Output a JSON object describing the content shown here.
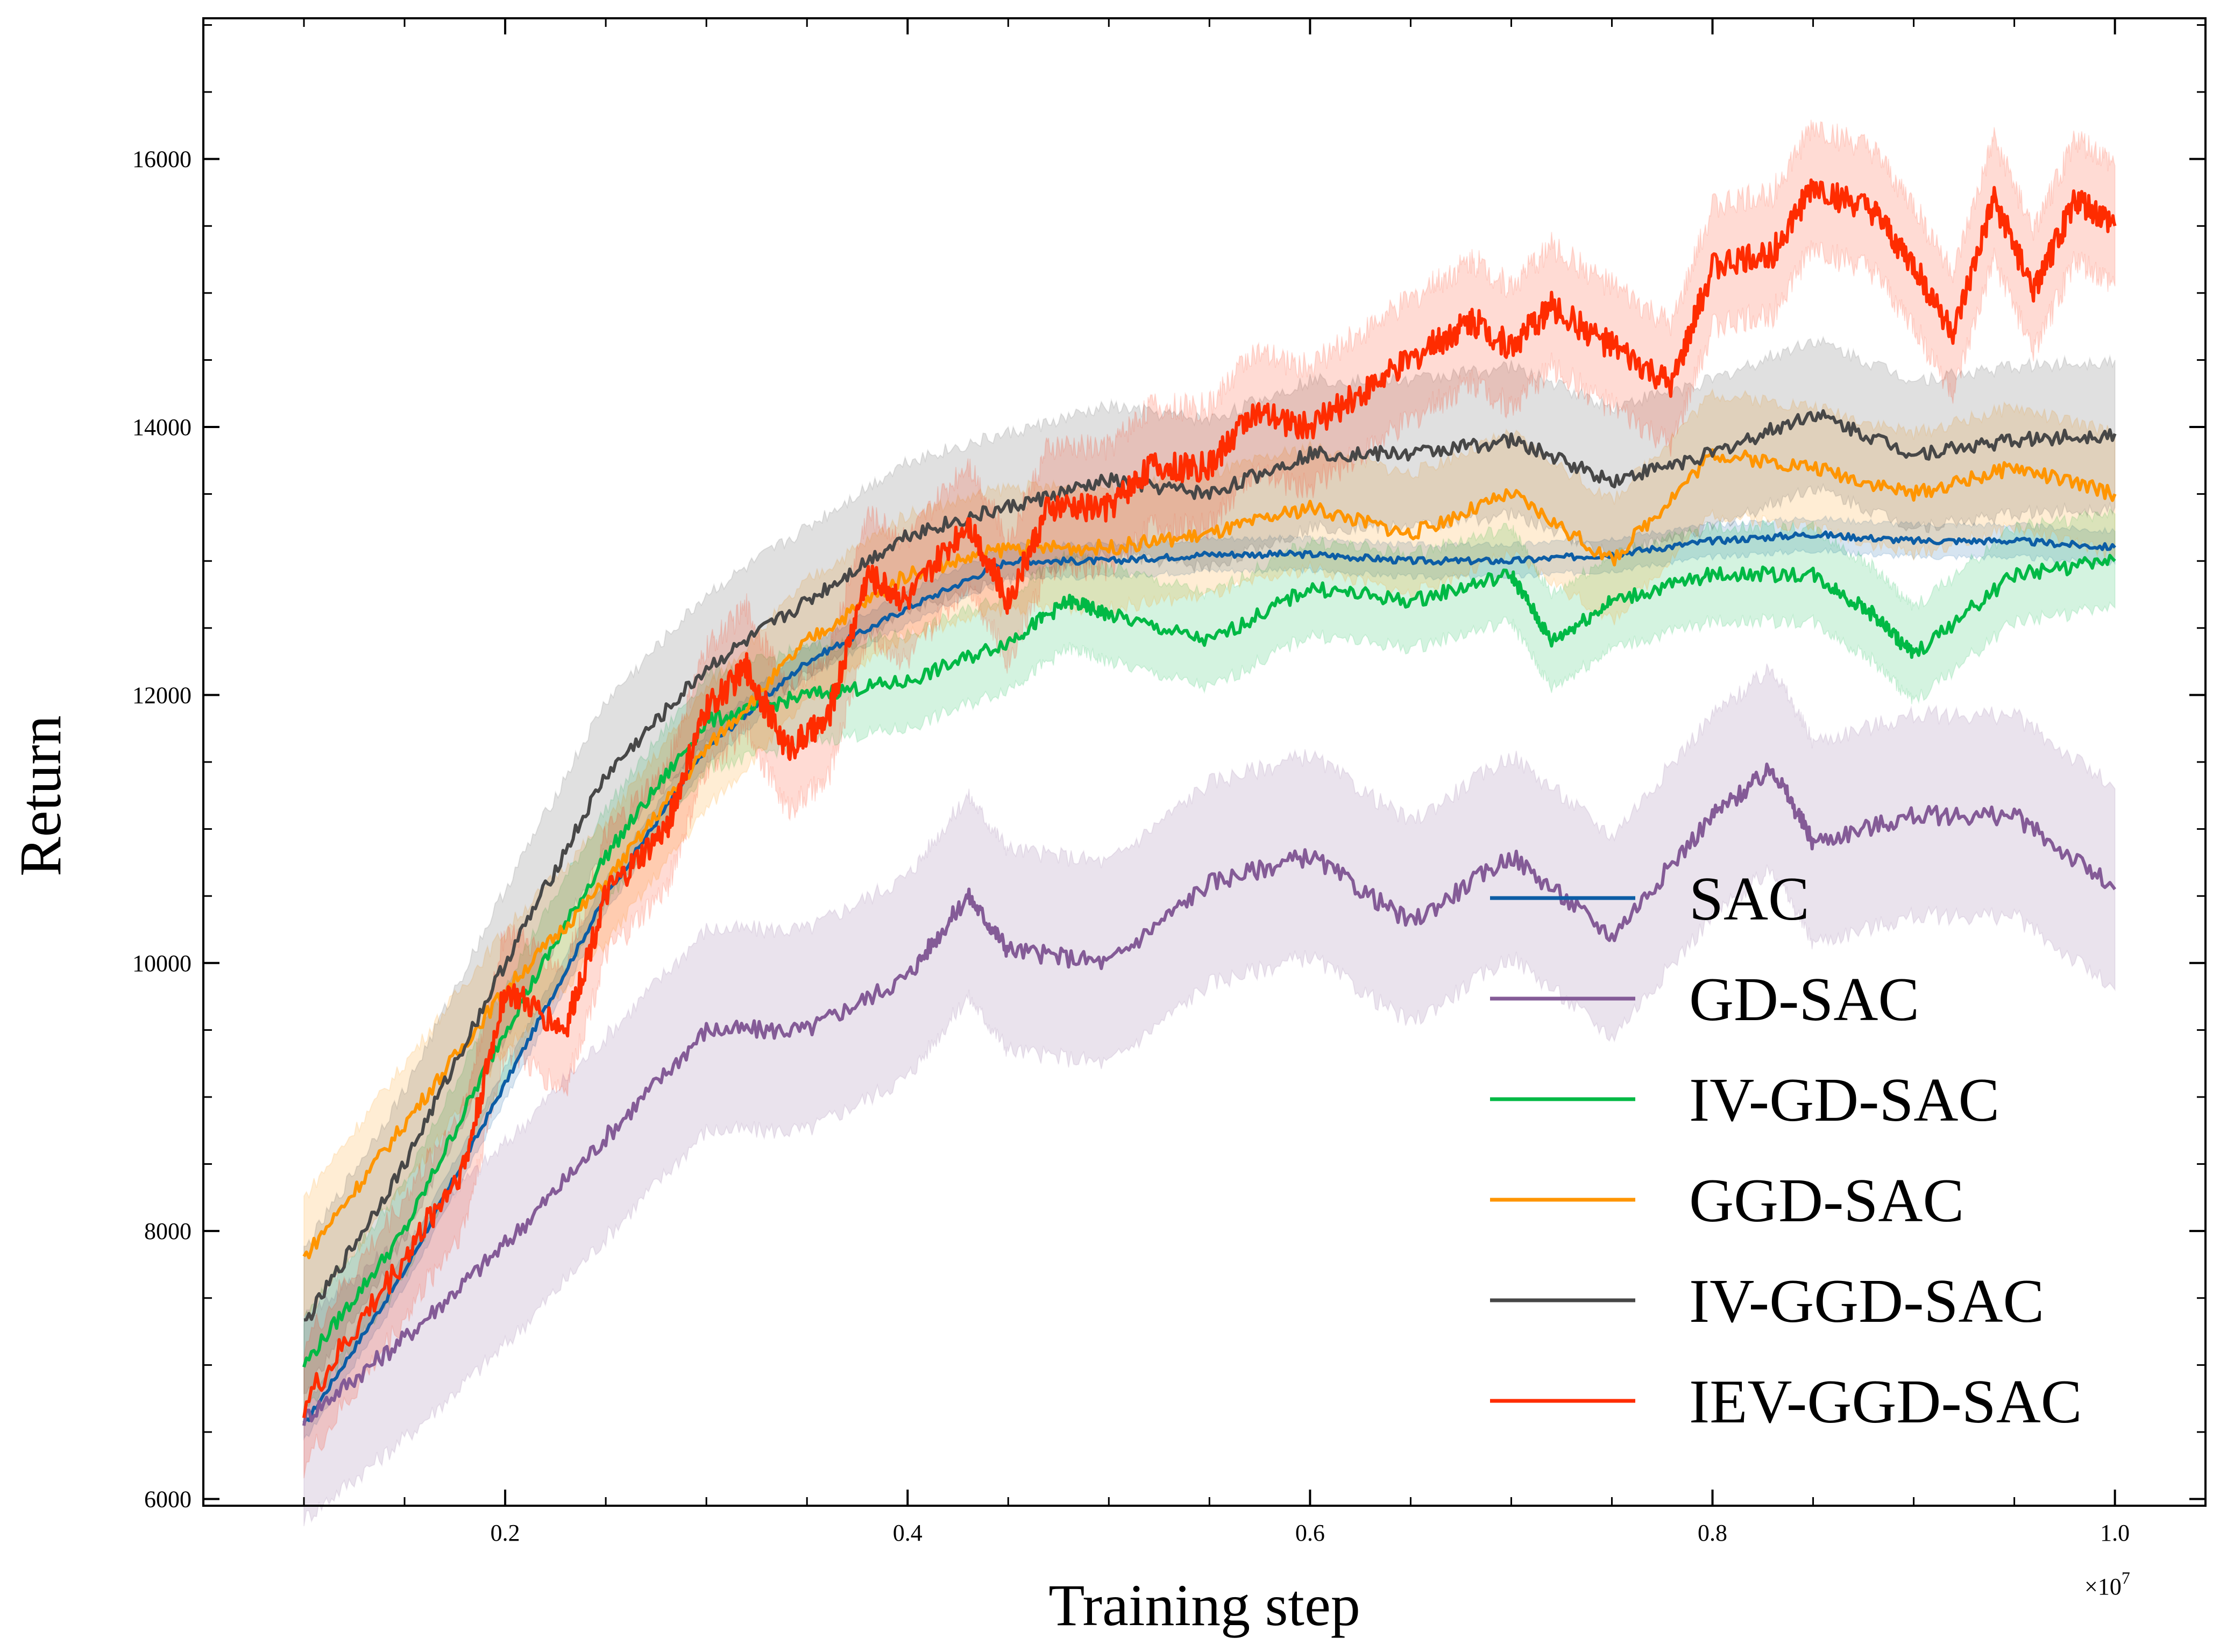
{
  "chart_data": {
    "type": "line",
    "title": "",
    "xlabel": "Training step",
    "ylabel": "Return",
    "x_multiplier_label": "×10",
    "x_multiplier_exponent": "7",
    "xlim": [
      0.05,
      1.045
    ],
    "ylim": [
      5950,
      17050
    ],
    "x_ticks": [
      0.2,
      0.4,
      0.6,
      0.8,
      1.0
    ],
    "x_tick_labels": [
      "0.2",
      "0.4",
      "0.6",
      "0.8",
      "1.0"
    ],
    "y_ticks": [
      6000,
      8000,
      10000,
      12000,
      14000,
      16000
    ],
    "y_tick_labels": [
      "6000",
      "8000",
      "10000",
      "12000",
      "14000",
      "16000"
    ],
    "grid": false,
    "legend_position": "lower-right",
    "series": [
      {
        "name": "SAC",
        "color": "#0C5DA5",
        "band": 120,
        "x": [
          0.1,
          0.15,
          0.2,
          0.25,
          0.3,
          0.35,
          0.4,
          0.45,
          0.5,
          0.55,
          0.6,
          0.65,
          0.7,
          0.75,
          0.8,
          0.85,
          0.9,
          0.95,
          1.0
        ],
        "y": [
          6550,
          7700,
          9100,
          10500,
          11600,
          12250,
          12650,
          13000,
          13000,
          13050,
          13050,
          13000,
          13000,
          13050,
          13150,
          13200,
          13150,
          13150,
          13100
        ]
      },
      {
        "name": "GD-SAC",
        "color": "#845B97",
        "band": 750,
        "x": [
          0.1,
          0.15,
          0.2,
          0.25,
          0.3,
          0.35,
          0.4,
          0.43,
          0.45,
          0.5,
          0.55,
          0.6,
          0.65,
          0.7,
          0.75,
          0.8,
          0.83,
          0.85,
          0.9,
          0.95,
          1.0
        ],
        "y": [
          6600,
          7200,
          7900,
          8700,
          9500,
          9500,
          9900,
          10500,
          10100,
          10000,
          10600,
          10800,
          10300,
          10800,
          10200,
          11100,
          11450,
          10900,
          11100,
          11100,
          10550
        ]
      },
      {
        "name": "IV-GD-SAC",
        "color": "#00B945",
        "band": 350,
        "x": [
          0.1,
          0.15,
          0.2,
          0.25,
          0.3,
          0.35,
          0.4,
          0.45,
          0.48,
          0.5,
          0.55,
          0.6,
          0.65,
          0.7,
          0.72,
          0.75,
          0.8,
          0.85,
          0.88,
          0.9,
          0.95,
          1.0
        ],
        "y": [
          7000,
          8000,
          9500,
          10800,
          11800,
          12000,
          12100,
          12400,
          12700,
          12600,
          12400,
          12800,
          12700,
          12900,
          12400,
          12700,
          12900,
          12900,
          12600,
          12300,
          12900,
          13000
        ]
      },
      {
        "name": "GGD-SAC",
        "color": "#FF9500",
        "band": 450,
        "x": [
          0.1,
          0.15,
          0.2,
          0.25,
          0.3,
          0.35,
          0.4,
          0.45,
          0.5,
          0.55,
          0.6,
          0.65,
          0.7,
          0.75,
          0.8,
          0.85,
          0.9,
          0.95,
          1.0
        ],
        "y": [
          7800,
          8800,
          9800,
          10600,
          11600,
          12400,
          12900,
          13100,
          13100,
          13200,
          13400,
          13200,
          13500,
          13000,
          13800,
          13700,
          13500,
          13700,
          13500
        ]
      },
      {
        "name": "IV-GGD-SAC",
        "color": "#474747",
        "band": 550,
        "x": [
          0.1,
          0.15,
          0.2,
          0.25,
          0.3,
          0.35,
          0.4,
          0.45,
          0.5,
          0.55,
          0.6,
          0.65,
          0.7,
          0.75,
          0.8,
          0.85,
          0.9,
          0.95,
          1.0
        ],
        "y": [
          7300,
          8500,
          10000,
          11400,
          12200,
          12700,
          13200,
          13400,
          13600,
          13500,
          13800,
          13800,
          13900,
          13600,
          13800,
          14100,
          13800,
          13900,
          13950
        ]
      },
      {
        "name": "IEV-GGD-SAC",
        "color": "#FF2C00",
        "band": 450,
        "x": [
          0.1,
          0.15,
          0.18,
          0.2,
          0.23,
          0.25,
          0.28,
          0.3,
          0.32,
          0.34,
          0.36,
          0.38,
          0.4,
          0.43,
          0.45,
          0.47,
          0.5,
          0.52,
          0.55,
          0.57,
          0.6,
          0.63,
          0.66,
          0.68,
          0.7,
          0.72,
          0.75,
          0.78,
          0.8,
          0.83,
          0.85,
          0.88,
          0.9,
          0.92,
          0.94,
          0.96,
          0.98,
          1.0
        ],
        "y": [
          6700,
          7800,
          8500,
          9800,
          9500,
          10500,
          11000,
          11900,
          12200,
          11600,
          11800,
          12900,
          12700,
          13300,
          12700,
          13400,
          13400,
          13700,
          13700,
          14100,
          14000,
          14300,
          14600,
          14800,
          14600,
          14900,
          14600,
          14300,
          15200,
          15300,
          15800,
          15600,
          15200,
          14700,
          15700,
          15000,
          15700,
          15500
        ]
      }
    ]
  }
}
